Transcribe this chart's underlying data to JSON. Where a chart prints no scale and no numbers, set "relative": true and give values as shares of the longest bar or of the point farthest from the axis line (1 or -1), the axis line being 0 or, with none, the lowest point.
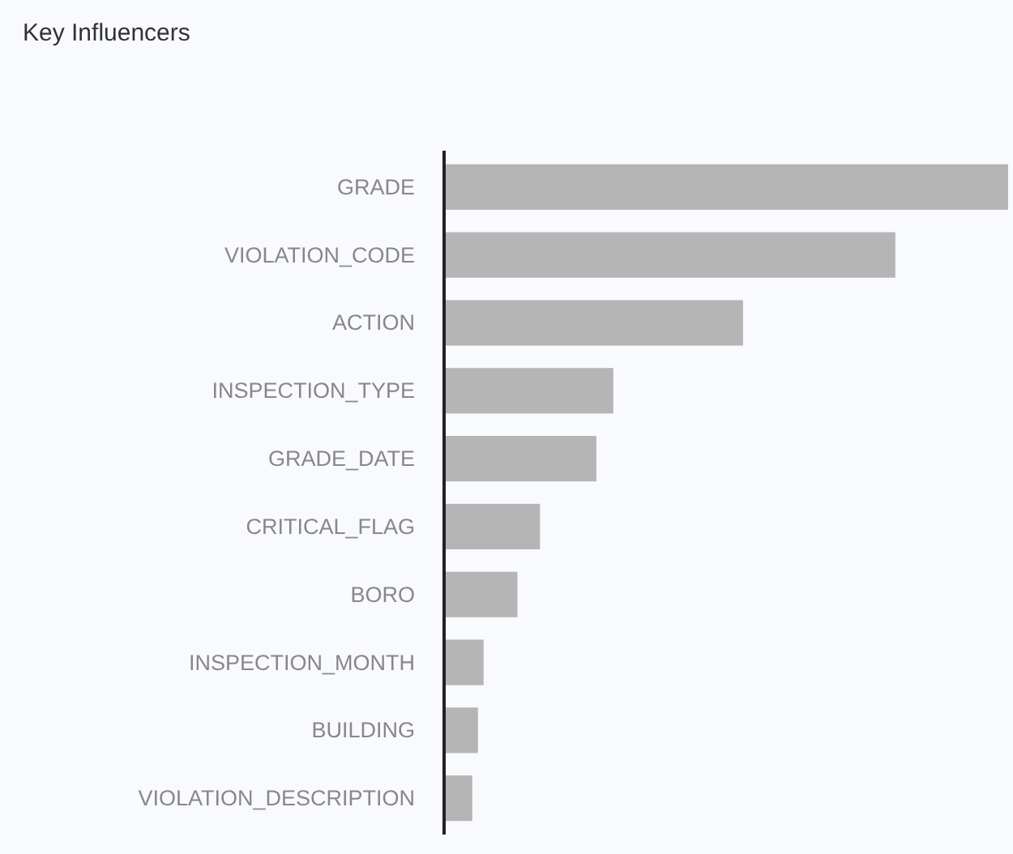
{
  "chart_data": {
    "type": "bar",
    "orientation": "horizontal",
    "relative": true,
    "title": "Key Influencers",
    "categories": [
      "GRADE",
      "VIOLATION_CODE",
      "ACTION",
      "INSPECTION_TYPE",
      "GRADE_DATE",
      "CRITICAL_FLAG",
      "BORO",
      "INSPECTION_MONTH",
      "BUILDING",
      "VIOLATION_DESCRIPTION"
    ],
    "values": [
      1,
      0.8,
      0.53,
      0.3,
      0.27,
      0.17,
      0.13,
      0.07,
      0.06,
      0.05
    ],
    "color": "#b5b5b5"
  }
}
